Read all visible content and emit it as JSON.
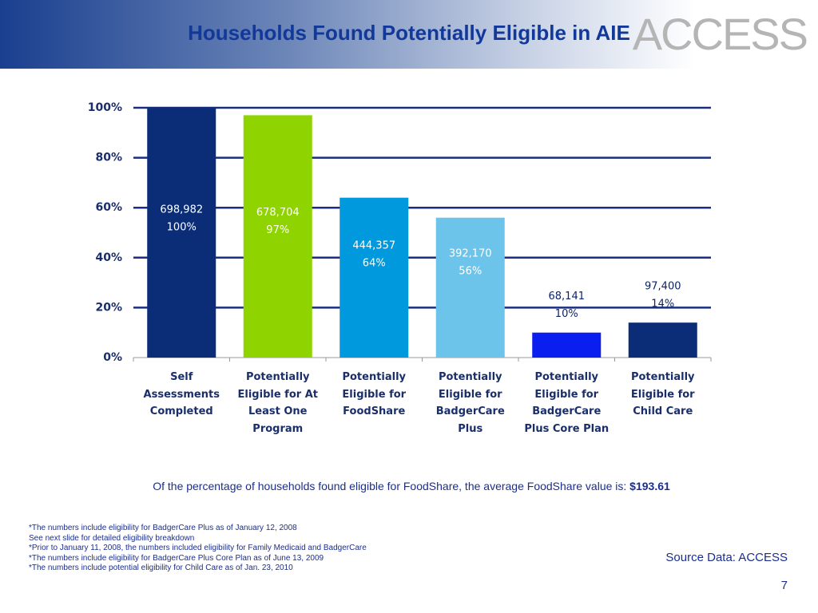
{
  "title": "Households Found Potentially Eligible in AIE",
  "logo": "ACCESS",
  "chart_data": {
    "type": "bar",
    "categories": [
      "Self Assessments Completed",
      "Potentially Eligible for At Least One Program",
      "Potentially Eligible for FoodShare",
      "Potentially Eligible for BadgerCare Plus",
      "Potentially Eligible for BadgerCare Plus Core Plan",
      "Potentially Eligible for Child Care"
    ],
    "values": [
      100,
      97,
      64,
      56,
      10,
      14
    ],
    "value_labels": [
      "100%",
      "97%",
      "64%",
      "56%",
      "10%",
      "14%"
    ],
    "count_labels": [
      "698,982",
      "678,704",
      "444,357",
      "392,170",
      "68,141",
      "97,400"
    ],
    "colors": [
      "#0b2d78",
      "#8fd400",
      "#0099dd",
      "#6cc4ea",
      "#0a1ef0",
      "#0b2d78"
    ],
    "ylim": [
      0,
      100
    ],
    "yticks": [
      {
        "value": 0,
        "label": "0%"
      },
      {
        "value": 20,
        "label": "20%"
      },
      {
        "value": 40,
        "label": "40%"
      },
      {
        "value": 60,
        "label": "60%"
      },
      {
        "value": 80,
        "label": "80%"
      },
      {
        "value": 100,
        "label": "100%"
      }
    ],
    "grid": true
  },
  "note": "Of the percentage of households found eligible for FoodShare, the average FoodShare value is:",
  "note_value": "$193.61",
  "footnotes": [
    "*The numbers include eligibility for BadgerCare Plus as of January 12, 2008",
    "See next slide for detailed eligibility breakdown",
    "*Prior to January 11, 2008, the numbers included eligibility for Family Medicaid and BadgerCare",
    "*The numbers include eligibility for BadgerCare Plus Core Plan as of June 13, 2009",
    "*The numbers include potential eligibility for Child Care as of Jan. 23, 2010"
  ],
  "source": "Source Data: ACCESS",
  "page": "7"
}
